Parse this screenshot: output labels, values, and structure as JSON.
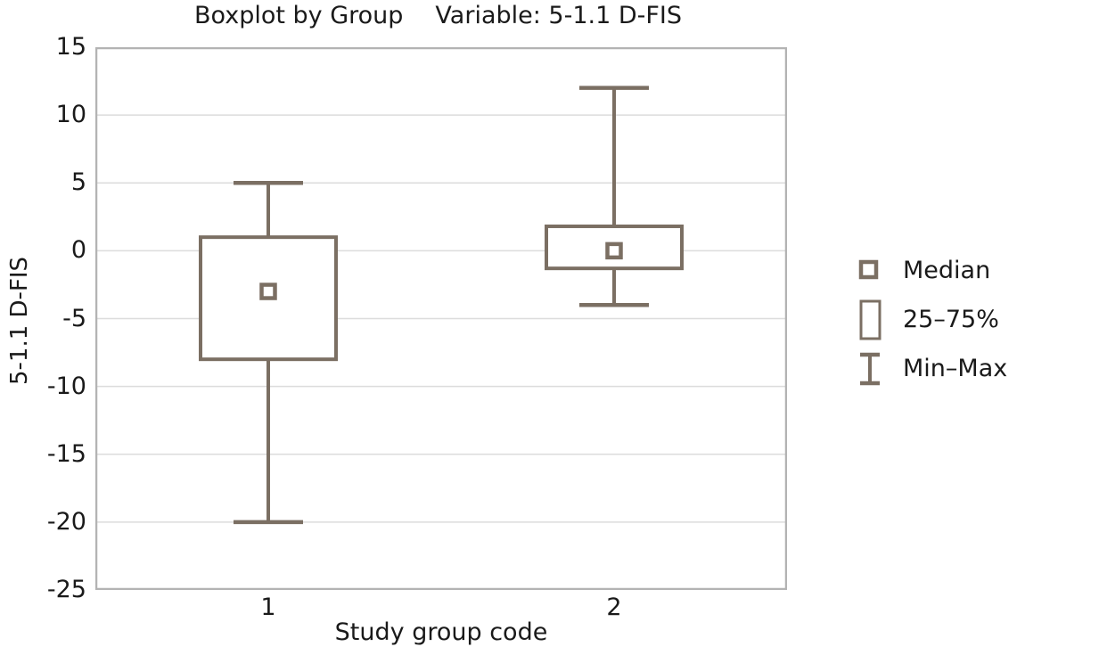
{
  "title": {
    "part1": "Boxplot by Group",
    "part2": "Variable: 5-1.1 D-FIS"
  },
  "axes": {
    "y_label": "5-1.1 D-FIS",
    "x_label": "Study group code"
  },
  "legend": {
    "items": [
      {
        "symbol": "median-marker",
        "label": "Median"
      },
      {
        "symbol": "iqr-box",
        "label": "25–75%"
      },
      {
        "symbol": "min-max-whisker",
        "label": "Min–Max"
      }
    ]
  },
  "colors": {
    "box": "#7b6f63",
    "grid": "#dcdcdc",
    "frame": "#b3b3b3",
    "text": "#1a1a1a"
  },
  "chart_data": {
    "type": "boxplot",
    "title": "Boxplot by Group    Variable: 5-1.1 D-FIS",
    "xlabel": "Study group code",
    "ylabel": "5-1.1 D-FIS",
    "ylim": [
      -25,
      15
    ],
    "yticks": [
      15,
      10,
      5,
      0,
      -5,
      -10,
      -15,
      -20,
      -25
    ],
    "categories": [
      "1",
      "2"
    ],
    "groups": [
      {
        "label": "1",
        "min": -20,
        "q1": -8,
        "median": -3,
        "q3": 1,
        "max": 5
      },
      {
        "label": "2",
        "min": -4,
        "q1": -1.3,
        "median": 0,
        "q3": 1.8,
        "max": 12
      }
    ],
    "grid": "horizontal",
    "legend_position": "right",
    "legend_entries": [
      "Median",
      "25–75%",
      "Min–Max"
    ]
  }
}
